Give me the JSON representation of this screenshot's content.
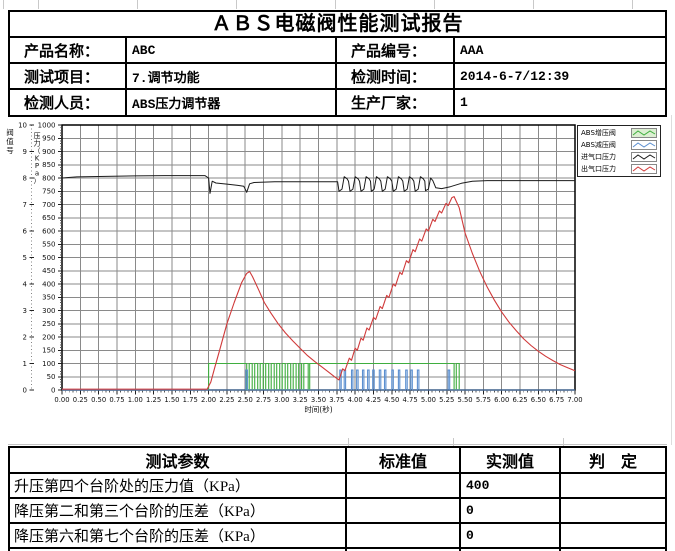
{
  "title": "ＡＢＳ电磁阀性能测试报告",
  "info": {
    "rows": [
      {
        "label1": "产品名称：",
        "value1": "ABC",
        "label2": "产品编号：",
        "value2": "AAA"
      },
      {
        "label1": "测试项目：",
        "value1": "7.调节功能",
        "label2": "检测时间：",
        "value2": "2014-6-7/12:39"
      },
      {
        "label1": "检测人员：",
        "value1": "ABS压力调节器",
        "label2": "生产厂家：",
        "value2": "1"
      }
    ]
  },
  "results": {
    "headers": [
      "测试参数",
      "标准值",
      "实测值",
      "判　定"
    ],
    "rows": [
      {
        "param": "升压第四个台阶处的压力值（KPa）",
        "standard": "",
        "measured": "400",
        "judge": ""
      },
      {
        "param": "降压第二和第三个台阶的压差（KPa）",
        "standard": "",
        "measured": "0",
        "judge": ""
      },
      {
        "param": "降压第六和第七个台阶的压差（KPa）",
        "standard": "",
        "measured": "0",
        "judge": ""
      }
    ]
  },
  "chart_data": {
    "type": "line",
    "title": "",
    "xlabel": "时间(秒)",
    "x_axis": {
      "min": 0,
      "max": 7,
      "step": 0.25
    },
    "pressure_axis": {
      "label": "压力（KPa）",
      "min": 0,
      "max": 1000,
      "step": 50
    },
    "valve_axis": {
      "label": "阀值号",
      "min": 0,
      "max": 10,
      "step": 1
    },
    "grid_color": "#8a8a8a",
    "series": [
      {
        "id": "boost_valve",
        "name": "ABS增压阀",
        "color": "#3fae3f",
        "legend_fill": "#dcefd2",
        "kind": "square_wave",
        "high_value": 100,
        "high_intervals": [
          [
            2.0,
            2.52
          ],
          [
            2.555,
            2.595
          ],
          [
            2.63,
            2.67
          ],
          [
            2.705,
            2.745
          ],
          [
            2.78,
            2.82
          ],
          [
            2.855,
            2.895
          ],
          [
            2.93,
            2.97
          ],
          [
            3.005,
            3.045
          ],
          [
            3.08,
            3.12
          ],
          [
            3.155,
            3.195
          ],
          [
            3.23,
            3.27
          ],
          [
            3.3,
            3.36
          ],
          [
            3.38,
            5.35
          ],
          [
            5.38,
            5.42
          ]
        ]
      },
      {
        "id": "release_valve",
        "name": "ABS减压阀",
        "color": "#5b8fd0",
        "legend_fill": "#ffffff",
        "kind": "pulse",
        "pulse_value": 75,
        "pulse_intervals": [
          [
            2.51,
            2.53
          ],
          [
            3.79,
            3.81
          ],
          [
            3.85,
            3.87
          ],
          [
            3.95,
            3.97
          ],
          [
            4.02,
            4.04
          ],
          [
            4.1,
            4.12
          ],
          [
            4.17,
            4.19
          ],
          [
            4.24,
            4.26
          ],
          [
            4.33,
            4.35
          ],
          [
            4.4,
            4.42
          ],
          [
            4.5,
            4.52
          ],
          [
            4.59,
            4.61
          ],
          [
            4.69,
            4.71
          ],
          [
            4.76,
            4.78
          ],
          [
            4.85,
            4.87
          ],
          [
            5.27,
            5.29
          ]
        ]
      },
      {
        "id": "inlet_pressure",
        "name": "进气口压力",
        "color": "#1a1a1a",
        "legend_fill": "#ffffff",
        "kind": "line",
        "points": [
          [
            0,
            800
          ],
          [
            0.2,
            804
          ],
          [
            0.6,
            806
          ],
          [
            1.0,
            808
          ],
          [
            1.4,
            809
          ],
          [
            1.95,
            809
          ],
          [
            2.0,
            800
          ],
          [
            2.02,
            742
          ],
          [
            2.05,
            788
          ],
          [
            2.1,
            781
          ],
          [
            2.25,
            777
          ],
          [
            2.4,
            772
          ],
          [
            2.48,
            769
          ],
          [
            2.5,
            758
          ],
          [
            2.52,
            746
          ],
          [
            2.56,
            778
          ],
          [
            2.62,
            783
          ],
          [
            2.9,
            786
          ],
          [
            3.5,
            786
          ],
          [
            3.76,
            786
          ],
          [
            3.78,
            750
          ],
          [
            3.82,
            758
          ],
          [
            3.85,
            805
          ],
          [
            3.89,
            797
          ],
          [
            3.91,
            788
          ],
          [
            3.93,
            750
          ],
          [
            3.97,
            758
          ],
          [
            4.0,
            805
          ],
          [
            4.04,
            797
          ],
          [
            4.06,
            788
          ],
          [
            4.08,
            750
          ],
          [
            4.12,
            758
          ],
          [
            4.15,
            805
          ],
          [
            4.19,
            797
          ],
          [
            4.21,
            788
          ],
          [
            4.22,
            750
          ],
          [
            4.26,
            758
          ],
          [
            4.29,
            805
          ],
          [
            4.33,
            797
          ],
          [
            4.35,
            788
          ],
          [
            4.37,
            750
          ],
          [
            4.41,
            758
          ],
          [
            4.44,
            805
          ],
          [
            4.48,
            797
          ],
          [
            4.5,
            788
          ],
          [
            4.52,
            750
          ],
          [
            4.56,
            758
          ],
          [
            4.59,
            805
          ],
          [
            4.63,
            797
          ],
          [
            4.65,
            788
          ],
          [
            4.67,
            750
          ],
          [
            4.71,
            758
          ],
          [
            4.74,
            805
          ],
          [
            4.78,
            797
          ],
          [
            4.8,
            788
          ],
          [
            4.82,
            750
          ],
          [
            4.86,
            758
          ],
          [
            4.89,
            805
          ],
          [
            4.93,
            797
          ],
          [
            4.95,
            788
          ],
          [
            4.96,
            752
          ],
          [
            5.0,
            758
          ],
          [
            5.03,
            800
          ],
          [
            5.06,
            790
          ],
          [
            5.1,
            763
          ],
          [
            5.18,
            760
          ],
          [
            5.3,
            767
          ],
          [
            5.45,
            780
          ],
          [
            5.6,
            788
          ],
          [
            5.8,
            790
          ],
          [
            7.0,
            790
          ]
        ]
      },
      {
        "id": "outlet_pressure",
        "name": "出气口压力",
        "color": "#d03a3a",
        "legend_fill": "#ffffff",
        "kind": "line",
        "points": [
          [
            0,
            3
          ],
          [
            1.98,
            3
          ],
          [
            2.03,
            30
          ],
          [
            2.08,
            80
          ],
          [
            2.15,
            150
          ],
          [
            2.25,
            250
          ],
          [
            2.35,
            330
          ],
          [
            2.45,
            405
          ],
          [
            2.52,
            440
          ],
          [
            2.56,
            447
          ],
          [
            2.6,
            428
          ],
          [
            2.68,
            380
          ],
          [
            2.76,
            330
          ],
          [
            2.85,
            290
          ],
          [
            2.95,
            250
          ],
          [
            3.05,
            215
          ],
          [
            3.15,
            185
          ],
          [
            3.25,
            157
          ],
          [
            3.35,
            130
          ],
          [
            3.45,
            107
          ],
          [
            3.55,
            86
          ],
          [
            3.65,
            65
          ],
          [
            3.72,
            50
          ],
          [
            3.78,
            38
          ],
          [
            3.83,
            80
          ],
          [
            3.86,
            73
          ],
          [
            3.92,
            120
          ],
          [
            3.95,
            112
          ],
          [
            4.0,
            158
          ],
          [
            4.03,
            150
          ],
          [
            4.08,
            196
          ],
          [
            4.11,
            188
          ],
          [
            4.16,
            234
          ],
          [
            4.19,
            226
          ],
          [
            4.25,
            274
          ],
          [
            4.28,
            266
          ],
          [
            4.34,
            315
          ],
          [
            4.37,
            307
          ],
          [
            4.43,
            357
          ],
          [
            4.46,
            349
          ],
          [
            4.52,
            400
          ],
          [
            4.55,
            392
          ],
          [
            4.61,
            444
          ],
          [
            4.64,
            436
          ],
          [
            4.7,
            488
          ],
          [
            4.73,
            480
          ],
          [
            4.79,
            530
          ],
          [
            4.82,
            522
          ],
          [
            4.88,
            570
          ],
          [
            4.91,
            562
          ],
          [
            4.97,
            608
          ],
          [
            5.0,
            600
          ],
          [
            5.06,
            644
          ],
          [
            5.09,
            636
          ],
          [
            5.15,
            676
          ],
          [
            5.18,
            668
          ],
          [
            5.24,
            704
          ],
          [
            5.27,
            696
          ],
          [
            5.32,
            726
          ],
          [
            5.35,
            730
          ],
          [
            5.42,
            688
          ],
          [
            5.5,
            592
          ],
          [
            5.6,
            515
          ],
          [
            5.7,
            448
          ],
          [
            5.8,
            389
          ],
          [
            5.9,
            339
          ],
          [
            6.0,
            294
          ],
          [
            6.1,
            256
          ],
          [
            6.2,
            223
          ],
          [
            6.3,
            193
          ],
          [
            6.4,
            168
          ],
          [
            6.5,
            146
          ],
          [
            6.6,
            127
          ],
          [
            6.7,
            111
          ],
          [
            6.8,
            96
          ],
          [
            6.9,
            84
          ],
          [
            7.0,
            73
          ]
        ]
      }
    ]
  }
}
